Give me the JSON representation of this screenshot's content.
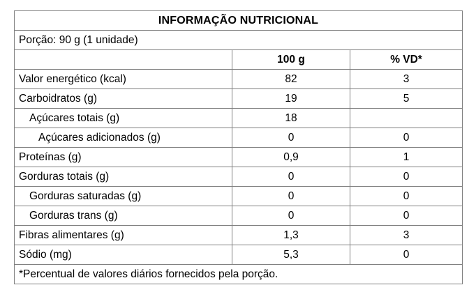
{
  "table": {
    "title": "INFORMAÇÃO NUTRICIONAL",
    "portion": "Porção: 90 g (1 unidade)",
    "columns": {
      "label": "",
      "per100": "100 g",
      "vd": "% VD*"
    },
    "rows": [
      {
        "label": "Valor energético (kcal)",
        "indent": 0,
        "per100": "82",
        "vd": "3"
      },
      {
        "label": "Carboidratos (g)",
        "indent": 0,
        "per100": "19",
        "vd": "5"
      },
      {
        "label": "Açúcares totais (g)",
        "indent": 1,
        "per100": "18",
        "vd": ""
      },
      {
        "label": "Açúcares adicionados (g)",
        "indent": 2,
        "per100": "0",
        "vd": "0"
      },
      {
        "label": "Proteínas (g)",
        "indent": 0,
        "per100": "0,9",
        "vd": "1"
      },
      {
        "label": "Gorduras totais (g)",
        "indent": 0,
        "per100": "0",
        "vd": "0"
      },
      {
        "label": "Gorduras saturadas (g)",
        "indent": 1,
        "per100": "0",
        "vd": "0"
      },
      {
        "label": "Gorduras trans (g)",
        "indent": 1,
        "per100": "0",
        "vd": "0"
      },
      {
        "label": "Fibras alimentares (g)",
        "indent": 0,
        "per100": "1,3",
        "vd": "3"
      },
      {
        "label": "Sódio (mg)",
        "indent": 0,
        "per100": "5,3",
        "vd": "0"
      }
    ],
    "footnote": "*Percentual de valores diários fornecidos pela porção.",
    "colors": {
      "border": "#7f7f7f",
      "text": "#000000",
      "background": "#ffffff"
    }
  }
}
